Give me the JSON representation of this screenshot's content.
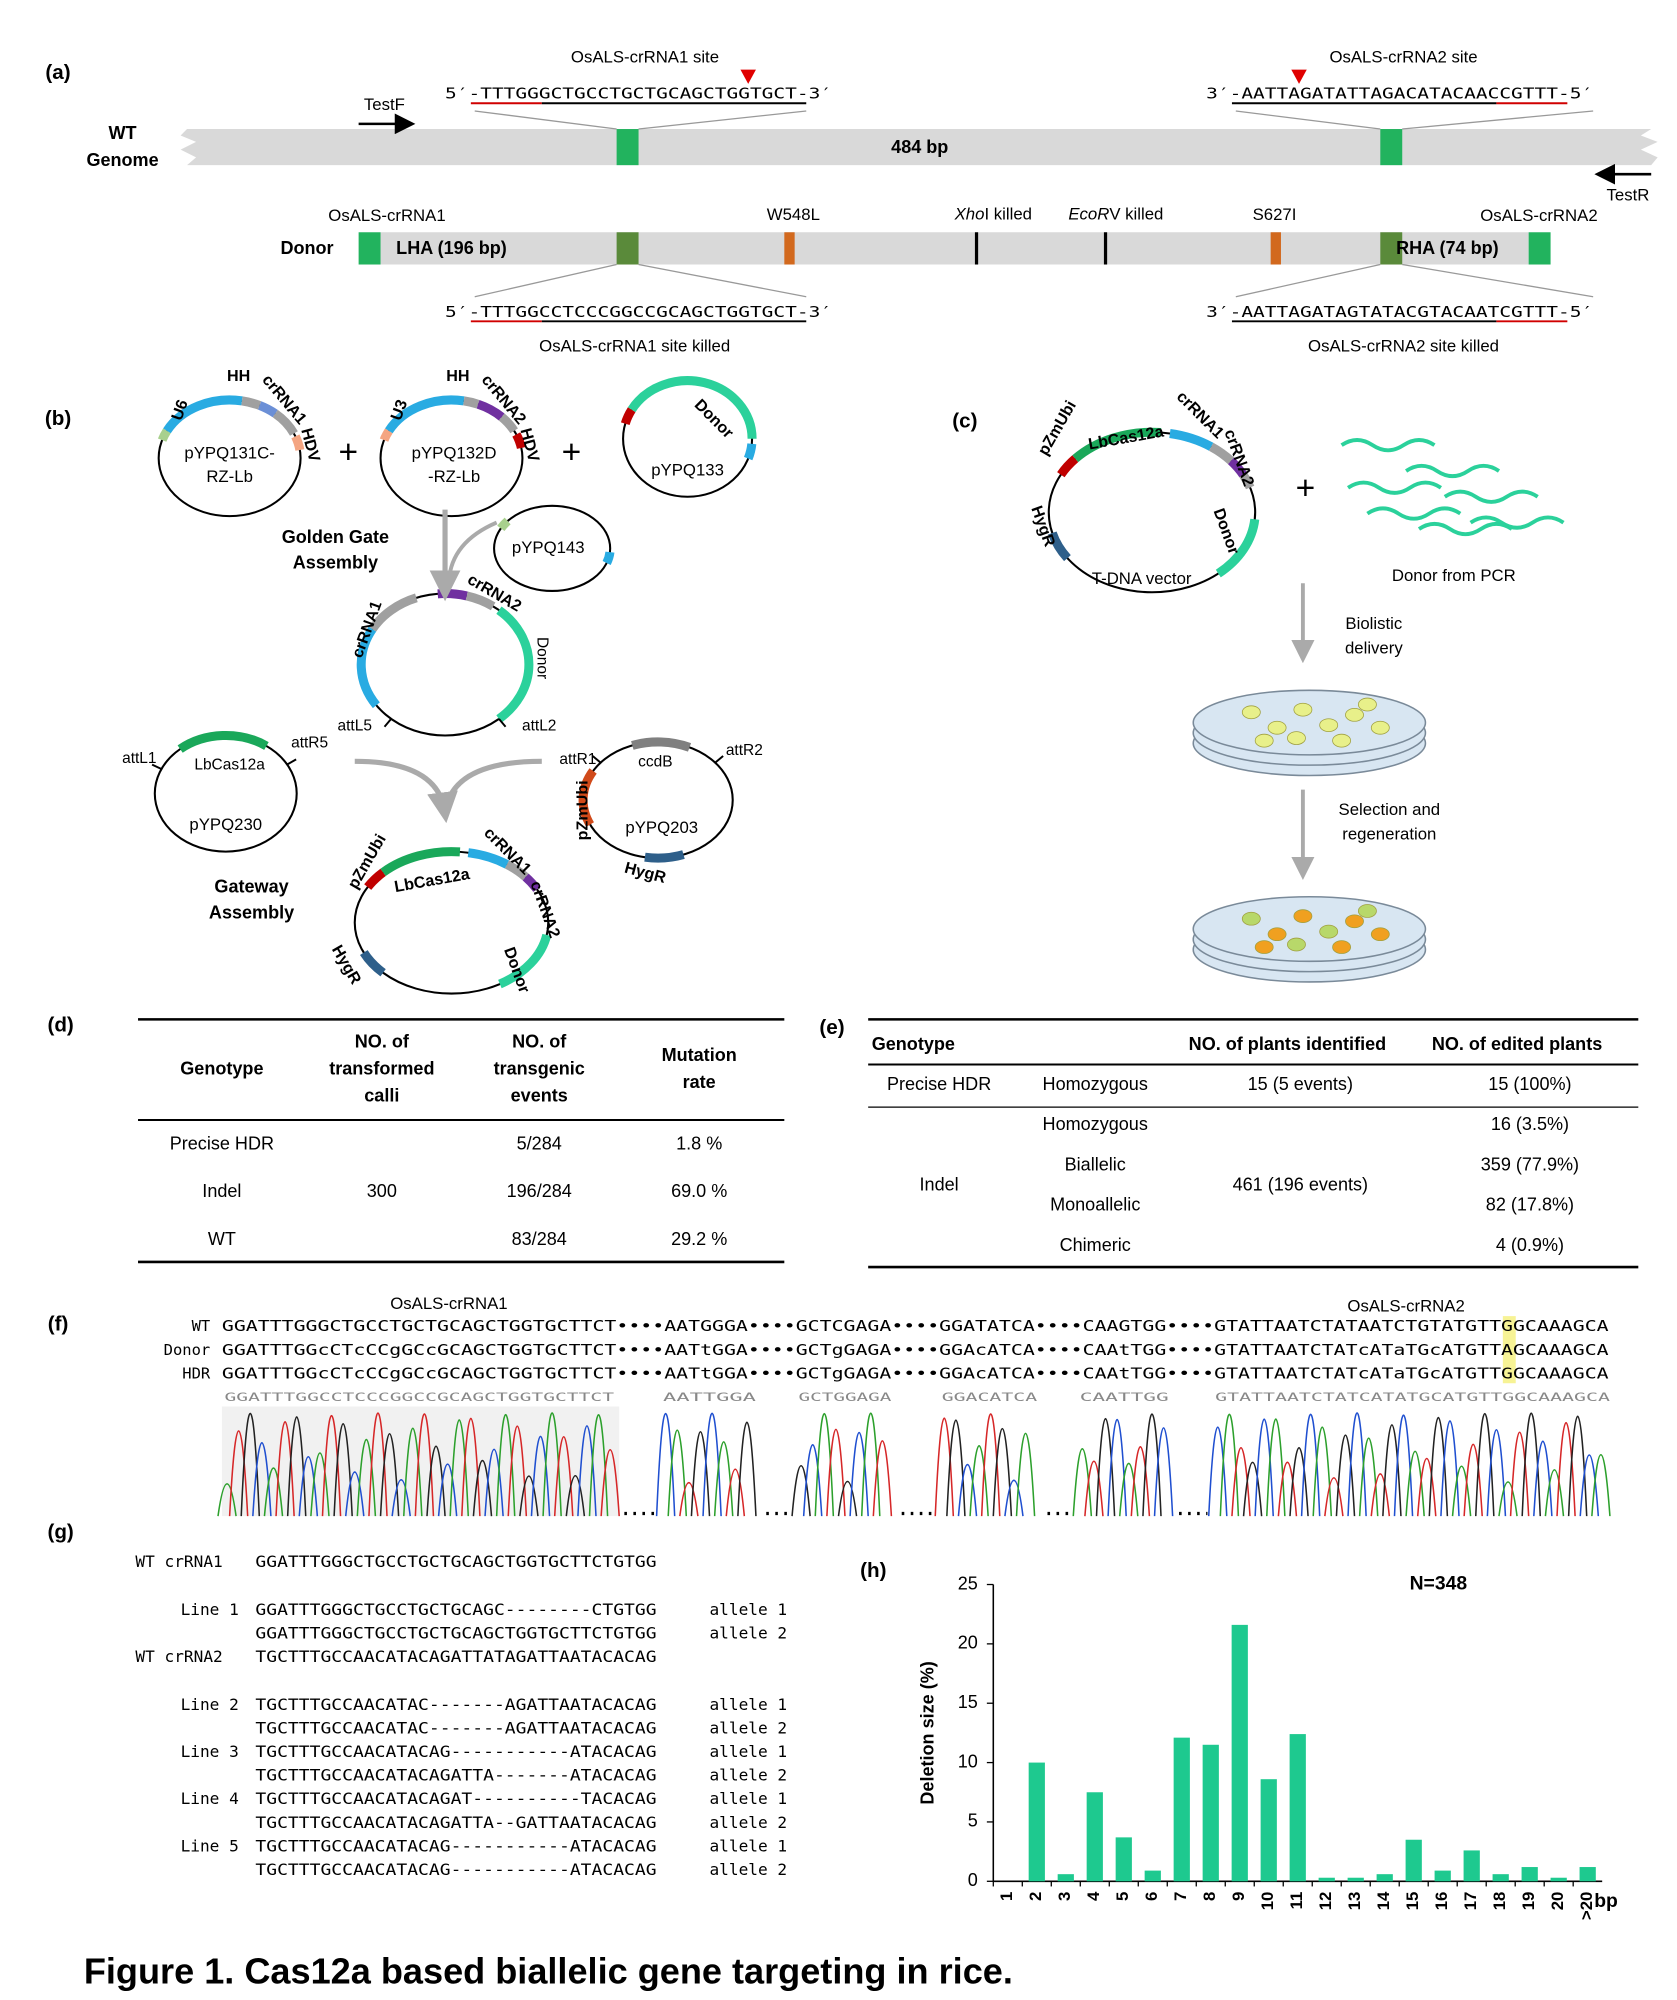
{
  "caption": "Figure 1. Cas12a based biallelic gene targeting in rice.",
  "panel_labels": [
    "(a)",
    "(b)",
    "(c)",
    "(d)",
    "(e)",
    "(f)",
    "(g)",
    "(h)"
  ],
  "a": {
    "site1": "OsALS-crRNA1 site",
    "seq1": "5′-TTTGGGCTGCCTGCTGCAGCTGGTGCT-3′",
    "site2": "OsALS-crRNA2 site",
    "seq2": "3′-AATTAGATATTAGACATACAACCGTTT-5′",
    "genome": [
      "WT",
      "Genome"
    ],
    "test_f": "TestF",
    "test_r": "TestR",
    "amplicon": "484 bp",
    "donor": "Donor",
    "crrna1": "OsALS-crRNA1",
    "lha": "LHA (196 bp)",
    "w548l": "W548L",
    "xhoi": [
      "Xho",
      "I killed"
    ],
    "ecorv": [
      "EcoR",
      "V killed"
    ],
    "s627i": "S627I",
    "rha": "RHA (74 bp)",
    "crrna2": "OsALS-crRNA2",
    "killed_seq1": "5′-TTTGGCCTCCCGGCCGCAGCTGGTGCT-3′",
    "killed1": "OsALS-crRNA1 site killed",
    "killed_seq2": "3′-AATTAGATAGTATACGTACAATCGTTT-5′",
    "killed2": "OsALS-crRNA2 site killed"
  },
  "b": {
    "plus": "+",
    "plasmids": {
      "p131": [
        "pYPQ131C-",
        "RZ-Lb"
      ],
      "p132": [
        "pYPQ132D",
        "-RZ-Lb"
      ],
      "p133": "pYPQ133",
      "p143": "pYPQ143",
      "p230": "pYPQ230",
      "p203": "pYPQ203"
    },
    "elements": [
      "U6",
      "HH",
      "crRNA1",
      "HDV",
      "U3",
      "HH",
      "crRNA2",
      "HDV",
      "Donor",
      "crRNA1",
      "crRNA2",
      "Donor",
      "attL5",
      "attL2",
      "attL1",
      "LbCas12a",
      "attR5",
      "attR1",
      "ccdB",
      "attR2",
      "pZmUbi",
      "HygR",
      "pZmUbi",
      "LbCas12a",
      "crRNA1",
      "crRNA2",
      "HygR",
      "Donor"
    ],
    "golden_gate": [
      "Golden Gate",
      "Assembly"
    ],
    "gateway": [
      "Gateway",
      "Assembly"
    ]
  },
  "c": {
    "elements": [
      "pZmUbi",
      "LbCas12a",
      "crRNA1",
      "crRNA2",
      "HygR",
      "Donor"
    ],
    "vector": "T-DNA vector",
    "plus": "+",
    "pcr_donor": "Donor from PCR",
    "step1": [
      "Biolistic",
      "delivery"
    ],
    "step2": [
      "Selection and",
      "regeneration"
    ]
  },
  "d": {
    "header": [
      [
        "Genotype"
      ],
      [
        "NO. of",
        "transformed",
        "calli"
      ],
      [
        "NO. of",
        "transgenic",
        "events"
      ],
      [
        "Mutation",
        "rate"
      ]
    ],
    "rows": [
      [
        "Precise HDR",
        "5/284",
        "1.8 %"
      ],
      [
        "Indel",
        "196/284",
        "69.0 %"
      ],
      [
        "WT",
        "83/284",
        "29.2 %"
      ]
    ],
    "calli": "300"
  },
  "e": {
    "header": [
      "Genotype",
      "NO. of plants identified",
      "NO. of edited plants"
    ],
    "hdr": {
      "genotype": "Precise HDR",
      "type": "Homozygous",
      "identified": "15 (5 events)",
      "edited": "15 (100%)"
    },
    "indel": {
      "genotype": "Indel",
      "identified": "461 (196 events)",
      "rows": [
        [
          "Homozygous",
          "16 (3.5%)"
        ],
        [
          "Biallelic",
          "359 (77.9%)"
        ],
        [
          "Monoallelic",
          "82 (17.8%)"
        ],
        [
          "Chimeric",
          "4 (0.9%)"
        ]
      ]
    }
  },
  "f": {
    "targets": [
      "OsALS-crRNA1",
      "OsALS-crRNA2"
    ],
    "rows": [
      {
        "name": "WT",
        "seq": "GGATTTGGGCTGCCTGCTGCAGCTGGTGCTTCT••••AATGGGA••••GCTCGAGA••••GGATATCA••••CAAGTGG••••GTATTAATCTATAATCTGTATGTTGGCAAAGCA"
      },
      {
        "name": "Donor",
        "seq": "GGATTTGGcCTcCCgGCcGCAGCTGGTGCTTCT••••AATtGGA••••GCTgGAGA••••GGAcATCA••••CAAtTGG••••GTATTAATCTATcATaTGcATGTTAGCAAAGCA"
      },
      {
        "name": "HDR",
        "seq": "GGATTTGGcCTcCCgGCcGCAGCTGGTGCTTCT••••AATtGGA••••GCTgGAGA••••GGAcATCA••••CAAtTGG••••GTATTAATCTATcATaTGcATGTTGGCAAAGCA"
      }
    ],
    "trace_calls": [
      "GGATTTGGCCTCCCGGCCGCAGCTGGTGCTTCT",
      "AATTGGA",
      "GCTGGAGA",
      "GGACATCA",
      "CAATTGG",
      "GTATTAATCTATCATATGCATGTTGGCAAAGCA"
    ]
  },
  "g": {
    "groups": [
      {
        "label": "WT crRNA1",
        "seq": "GGATTTGGGCTGCCTGCTGCAGCTGGTGCTTCTGTGG",
        "lines": [
          {
            "label": "Line 1",
            "alleles": [
              {
                "seq": "GGATTTGGGCTGCCTGCTGCAGC--------CTGTGG",
                "allele": "allele 1"
              },
              {
                "seq": "GGATTTGGGCTGCCTGCTGCAGCTGGTGCTTCTGTGG",
                "allele": "allele 2"
              }
            ]
          }
        ]
      },
      {
        "label": "WT crRNA2",
        "seq": "TGCTTTGCCAACATACAGATTATAGATTAATACACAG",
        "lines": [
          {
            "label": "Line 2",
            "alleles": [
              {
                "seq": "TGCTTTGCCAACATAC-------AGATTAATACACAG",
                "allele": "allele 1"
              },
              {
                "seq": "TGCTTTGCCAACATAC-------AGATTAATACACAG",
                "allele": "allele 2"
              }
            ]
          },
          {
            "label": "Line 3",
            "alleles": [
              {
                "seq": "TGCTTTGCCAACATACAG-----------ATACACAG",
                "allele": "allele 1"
              },
              {
                "seq": "TGCTTTGCCAACATACAGATTA-------ATACACAG",
                "allele": "allele 2"
              }
            ]
          },
          {
            "label": "Line 4",
            "alleles": [
              {
                "seq": "TGCTTTGCCAACATACAGAT----------TACACAG",
                "allele": "allele 1"
              },
              {
                "seq": "TGCTTTGCCAACATACAGATTA--GATTAATACACAG",
                "allele": "allele 2"
              }
            ]
          },
          {
            "label": "Line 5",
            "alleles": [
              {
                "seq": "TGCTTTGCCAACATACAG-----------ATACACAG",
                "allele": "allele 1"
              },
              {
                "seq": "TGCTTTGCCAACATACAG-----------ATACACAG",
                "allele": "allele 2"
              }
            ]
          }
        ]
      }
    ]
  },
  "chart_data": {
    "type": "bar",
    "annotation": "N=348",
    "y_label": "Deletion size (%)",
    "x_unit": "bp",
    "categories": [
      "1",
      "2",
      "3",
      "4",
      "5",
      "6",
      "7",
      "8",
      "9",
      "10",
      "11",
      "12",
      "13",
      "14",
      "15",
      "16",
      "17",
      "18",
      "19",
      "20",
      ">20"
    ],
    "values": [
      0,
      10,
      0.6,
      7.5,
      3.7,
      0.9,
      12.1,
      11.5,
      21.6,
      8.6,
      12.4,
      0.3,
      0.3,
      0.6,
      3.5,
      0.9,
      2.6,
      0.6,
      1.2,
      0.3,
      1.2
    ],
    "color": "#1ec98f",
    "ylim": [
      0,
      25
    ],
    "yticks": [
      0,
      5,
      10,
      15,
      20,
      25
    ]
  }
}
